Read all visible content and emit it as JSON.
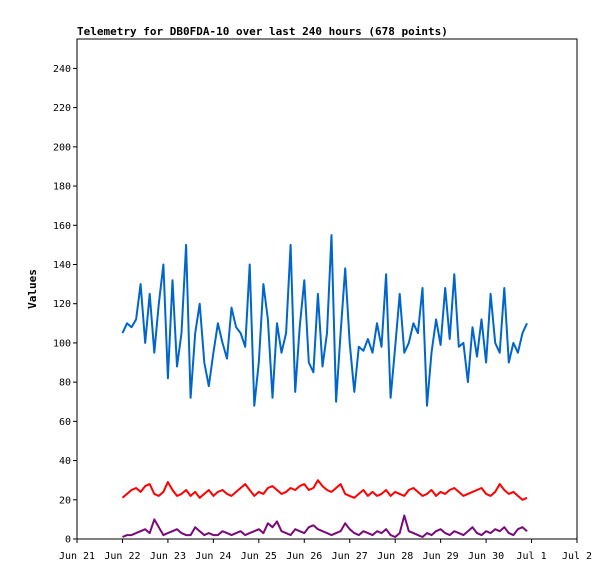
{
  "chart_data": {
    "type": "line",
    "title": "Telemetry for DB0FDA-10 over last 240 hours (678 points)",
    "xlabel": "",
    "ylabel": "Values",
    "ylim": [
      0,
      255
    ],
    "yticks": [
      0,
      20,
      40,
      60,
      80,
      100,
      120,
      140,
      160,
      180,
      200,
      220,
      240
    ],
    "xticks": [
      "Jun 21",
      "Jun 22",
      "Jun 23",
      "Jun 24",
      "Jun 25",
      "Jun 26",
      "Jun 27",
      "Jun 28",
      "Jun 29",
      "Jun 30",
      "Jul 1",
      "Jul 2"
    ],
    "x_start": "Jun 22",
    "x_step_days": 0.5,
    "grid": false,
    "series": [
      {
        "color": "#0066cc",
        "values": [
          105,
          110,
          108,
          112,
          130,
          100,
          125,
          95,
          120,
          140,
          82,
          132,
          88,
          105,
          150,
          72,
          105,
          120,
          90,
          78,
          95,
          110,
          100,
          92,
          118,
          108,
          105,
          98,
          140,
          68,
          90,
          130,
          112,
          72,
          110,
          95,
          105,
          150,
          75,
          108,
          132,
          90,
          85,
          125,
          88,
          105,
          155,
          70,
          105,
          138,
          100,
          75,
          98,
          96,
          102,
          95,
          110,
          98,
          135,
          72,
          98,
          125,
          95,
          100,
          110,
          105,
          128,
          68,
          95,
          112,
          99,
          128,
          102,
          135,
          98,
          100,
          80,
          108,
          93,
          112,
          90,
          125,
          100,
          95,
          128,
          90,
          100,
          95,
          105,
          110
        ]
      },
      {
        "color": "#ff0000",
        "values": [
          21,
          23,
          25,
          26,
          24,
          27,
          28,
          23,
          22,
          24,
          29,
          25,
          22,
          23,
          25,
          22,
          24,
          21,
          23,
          25,
          22,
          24,
          25,
          23,
          22,
          24,
          26,
          28,
          25,
          22,
          24,
          23,
          26,
          27,
          25,
          23,
          24,
          26,
          25,
          27,
          28,
          25,
          26,
          30,
          27,
          25,
          24,
          26,
          28,
          23,
          22,
          21,
          23,
          25,
          22,
          24,
          22,
          23,
          25,
          22,
          24,
          23,
          22,
          25,
          26,
          24,
          22,
          23,
          25,
          22,
          24,
          23,
          25,
          26,
          24,
          22,
          23,
          24,
          25,
          26,
          23,
          22,
          24,
          28,
          25,
          23,
          24,
          22,
          20,
          21
        ]
      },
      {
        "color": "#7a0a7a",
        "values": [
          1,
          2,
          2,
          3,
          4,
          5,
          3,
          10,
          6,
          2,
          3,
          4,
          5,
          3,
          2,
          2,
          6,
          4,
          2,
          3,
          2,
          2,
          4,
          3,
          2,
          3,
          4,
          2,
          3,
          4,
          5,
          3,
          8,
          6,
          9,
          4,
          3,
          2,
          5,
          4,
          3,
          6,
          7,
          5,
          4,
          3,
          2,
          3,
          4,
          8,
          5,
          3,
          2,
          4,
          3,
          2,
          4,
          3,
          5,
          2,
          1,
          3,
          12,
          4,
          3,
          2,
          1,
          3,
          2,
          4,
          5,
          3,
          2,
          4,
          3,
          2,
          4,
          6,
          3,
          2,
          4,
          3,
          5,
          4,
          6,
          3,
          2,
          5,
          6,
          4
        ]
      }
    ]
  }
}
